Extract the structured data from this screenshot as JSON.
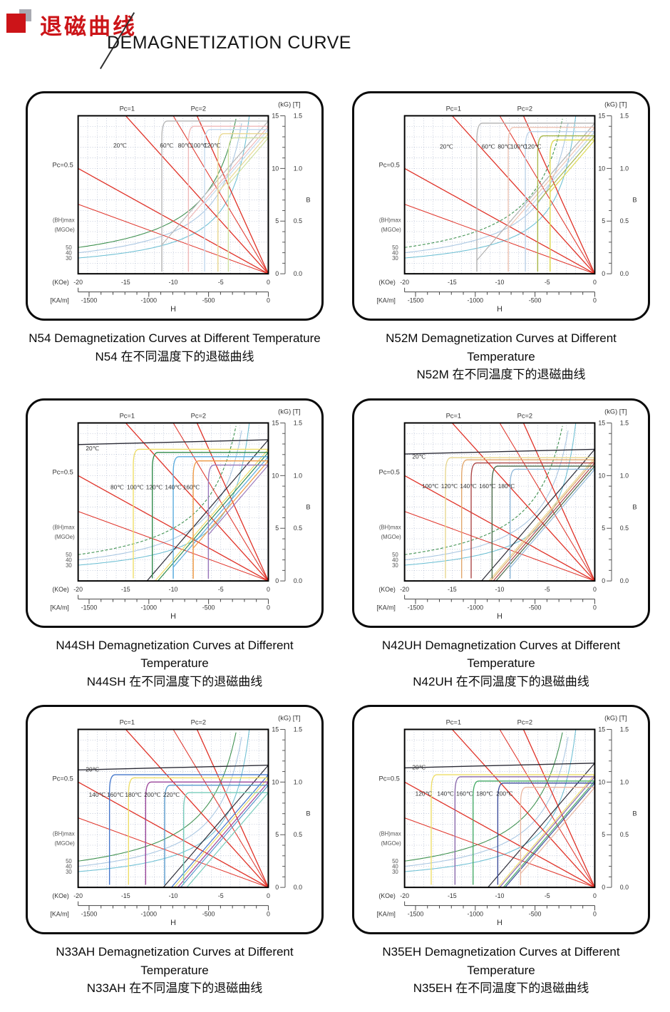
{
  "page": {
    "title_zh": "退磁曲线",
    "title_en": "DEMAGNETIZATION CURVE",
    "accent_color": "#cc1418"
  },
  "axes": {
    "right_axis_title": "(kG) [T]",
    "kg_tick_labels": [
      15,
      10,
      5,
      0
    ],
    "t_tick_labels": [
      "1.5",
      "1.0",
      "0.5",
      "0.0"
    ],
    "b_axis_label": "B",
    "h_axis_label": "H",
    "koe_unit_label": "(KOe)",
    "kam_unit_label": "[KA/m]",
    "koe_ticks": [
      -20,
      -15,
      -10,
      -5,
      0
    ],
    "kam_ticks": [
      -1500,
      -1000,
      -500,
      0
    ],
    "h_range_koe": [
      -20,
      0
    ],
    "b_range_kg": [
      0,
      15
    ],
    "grid": "dotted, 1 kOe x 1 kG",
    "bhmax_title": "(BH)max",
    "bhmax_units": "(MGOe)",
    "bhmax_values": [
      50,
      40,
      30
    ],
    "bhmax_curve_colors": {
      "50": "#3f9150",
      "40": "#aac7e2",
      "30": "#6fc0d4"
    },
    "pc05_label": "Pc=0.5",
    "pc1_label": "Pc=1",
    "pc2_label": "Pc=2",
    "pc_lines_labeled": [
      0.5,
      1,
      2
    ],
    "pc_lines_unlabeled": [
      0.33,
      1.5
    ],
    "load_line_color": "#e0342a"
  },
  "chart_data": [
    {
      "type": "line",
      "grade": "N54",
      "caption_en": "N54 Demagnetization Curves at Different Temperature",
      "caption_zh": "N54 在不同温度下的退磁曲线",
      "bhmax_50_dashed": false,
      "series": [
        {
          "temp": "20℃",
          "color": "#b6b6b6",
          "br_kg": 14.5,
          "knee_koe": -11.2,
          "label_x_koe": -15.6,
          "label_b_kg": 12.0
        },
        {
          "temp": "60℃",
          "color": "#f0b9b9",
          "br_kg": 14.0,
          "knee_koe": -8.4,
          "label_x_koe": -10.7,
          "label_b_kg": 12.0
        },
        {
          "temp": "80℃",
          "color": "#c4d9ee",
          "br_kg": 13.7,
          "knee_koe": -6.7,
          "label_x_koe": -8.8,
          "label_b_kg": 12.0
        },
        {
          "temp": "100℃",
          "color": "#e9d892",
          "br_kg": 13.3,
          "knee_koe": -5.3,
          "label_x_koe": -7.3,
          "label_b_kg": 12.0
        },
        {
          "temp": "120℃",
          "color": "#cfe0a0",
          "br_kg": 12.9,
          "knee_koe": -4.2,
          "label_x_koe": -5.9,
          "label_b_kg": 12.0
        }
      ]
    },
    {
      "type": "line",
      "grade": "N52M",
      "caption_en": "N52M Demagnetization Curves at Different Temperature",
      "caption_zh": "N52M 在不同温度下的退磁曲线",
      "bhmax_50_dashed": true,
      "series": [
        {
          "temp": "20℃",
          "color": "#b2b2b2",
          "br_kg": 14.3,
          "knee_koe": -12.4,
          "label_x_koe": -15.6,
          "label_b_kg": 11.9
        },
        {
          "temp": "60℃",
          "color": "#eec4b4",
          "br_kg": 13.9,
          "knee_koe": -9.1,
          "label_x_koe": -11.2,
          "label_b_kg": 11.9
        },
        {
          "temp": "80℃",
          "color": "#bcd2e8",
          "br_kg": 13.5,
          "knee_koe": -7.3,
          "label_x_koe": -9.5,
          "label_b_kg": 11.9
        },
        {
          "temp": "100℃",
          "color": "#a9b84a",
          "br_kg": 13.1,
          "knee_koe": -6.0,
          "label_x_koe": -8.0,
          "label_b_kg": 11.9
        },
        {
          "temp": "120℃",
          "color": "#dcd84e",
          "br_kg": 12.7,
          "knee_koe": -4.7,
          "label_x_koe": -6.5,
          "label_b_kg": 11.9
        }
      ]
    },
    {
      "type": "line",
      "grade": "N44SH",
      "caption_en": "N44SH Demagnetization Curves at Different Temperature",
      "caption_zh": "N44SH 在不同温度下的退磁曲线",
      "bhmax_50_dashed": true,
      "series": [
        {
          "temp": "20℃",
          "color": "#2a2a35",
          "br_kg": 13.4,
          "knee_koe": null,
          "label_x_koe": -18.5,
          "label_b_kg": 12.4
        },
        {
          "temp": "80℃",
          "color": "#eedd66",
          "br_kg": 12.5,
          "knee_koe": -14.2,
          "label_x_koe": -15.9,
          "label_b_kg": 8.7
        },
        {
          "temp": "100℃",
          "color": "#2f8a4a",
          "br_kg": 12.2,
          "knee_koe": -12.2,
          "label_x_koe": -14.0,
          "label_b_kg": 8.7
        },
        {
          "temp": "120℃",
          "color": "#58aadd",
          "br_kg": 11.8,
          "knee_koe": -10.0,
          "label_x_koe": -12.0,
          "label_b_kg": 8.7
        },
        {
          "temp": "140℃",
          "color": "#ee9944",
          "br_kg": 11.4,
          "knee_koe": -7.9,
          "label_x_koe": -10.0,
          "label_b_kg": 8.7
        },
        {
          "temp": "160℃",
          "color": "#9977bb",
          "br_kg": 11.0,
          "knee_koe": -6.3,
          "label_x_koe": -8.1,
          "label_b_kg": 8.7
        }
      ]
    },
    {
      "type": "line",
      "grade": "N42UH",
      "caption_en": "N42UH Demagnetization Curves at Different Temperature",
      "caption_zh": "N42UH 在不同温度下的退磁曲线",
      "bhmax_50_dashed": true,
      "series": [
        {
          "temp": "20℃",
          "color": "#2a2a35",
          "br_kg": 12.5,
          "knee_koe": null,
          "label_x_koe": -18.5,
          "label_b_kg": 11.6
        },
        {
          "temp": "100℃",
          "color": "#e6d68e",
          "br_kg": 11.7,
          "knee_koe": -15.7,
          "label_x_koe": -17.3,
          "label_b_kg": 8.8
        },
        {
          "temp": "120℃",
          "color": "#e2a66a",
          "br_kg": 11.5,
          "knee_koe": -14.0,
          "label_x_koe": -15.3,
          "label_b_kg": 8.8
        },
        {
          "temp": "140℃",
          "color": "#aa4444",
          "br_kg": 11.2,
          "knee_koe": -13.0,
          "label_x_koe": -13.3,
          "label_b_kg": 8.8
        },
        {
          "temp": "160℃",
          "color": "#4a6a4a",
          "br_kg": 10.9,
          "knee_koe": -10.8,
          "label_x_koe": -11.3,
          "label_b_kg": 8.8
        },
        {
          "temp": "180℃",
          "color": "#92b9d9",
          "br_kg": 10.6,
          "knee_koe": -8.9,
          "label_x_koe": -9.3,
          "label_b_kg": 8.8
        }
      ]
    },
    {
      "type": "line",
      "grade": "N33AH",
      "caption_en": "N33AH Demagnetization Curves at Different Temperature",
      "caption_zh": "N33AH 在不同温度下的退磁曲线",
      "bhmax_50_dashed": false,
      "series": [
        {
          "temp": "20℃",
          "color": "#2a2a35",
          "br_kg": 11.6,
          "knee_koe": null,
          "label_x_koe": -18.5,
          "label_b_kg": 11.0
        },
        {
          "temp": "140℃",
          "color": "#4477cc",
          "br_kg": 10.7,
          "knee_koe": -16.7,
          "label_x_koe": -18.0,
          "label_b_kg": 8.6
        },
        {
          "temp": "160℃",
          "color": "#eedd66",
          "br_kg": 10.4,
          "knee_koe": -14.7,
          "label_x_koe": -16.1,
          "label_b_kg": 8.6
        },
        {
          "temp": "180℃",
          "color": "#994499",
          "br_kg": 10.0,
          "knee_koe": -12.9,
          "label_x_koe": -14.2,
          "label_b_kg": 8.6
        },
        {
          "temp": "200℃",
          "color": "#5599cc",
          "br_kg": 9.7,
          "knee_koe": -10.9,
          "label_x_koe": -12.2,
          "label_b_kg": 8.6
        },
        {
          "temp": "220℃",
          "color": "#77ccbb",
          "br_kg": 9.0,
          "knee_koe": -8.9,
          "label_x_koe": -10.2,
          "label_b_kg": 8.6
        }
      ]
    },
    {
      "type": "line",
      "grade": "N35EH",
      "caption_en": "N35EH Demagnetization Curves at Different Temperature",
      "caption_zh": "N35EH 在不同温度下的退磁曲线",
      "bhmax_50_dashed": false,
      "series": [
        {
          "temp": "20℃",
          "color": "#2a2a35",
          "br_kg": 11.8,
          "knee_koe": null,
          "label_x_koe": -18.5,
          "label_b_kg": 11.2
        },
        {
          "temp": "120℃",
          "color": "#eedd66",
          "br_kg": 10.7,
          "knee_koe": -17.2,
          "label_x_koe": -18.0,
          "label_b_kg": 8.7
        },
        {
          "temp": "140℃",
          "color": "#8866aa",
          "br_kg": 10.5,
          "knee_koe": -14.7,
          "label_x_koe": -15.7,
          "label_b_kg": 8.7
        },
        {
          "temp": "160℃",
          "color": "#44aa66",
          "br_kg": 10.1,
          "knee_koe": -12.8,
          "label_x_koe": -13.7,
          "label_b_kg": 8.7
        },
        {
          "temp": "180℃",
          "color": "#3a4a99",
          "br_kg": 9.9,
          "knee_koe": -10.2,
          "label_x_koe": -11.6,
          "label_b_kg": 8.7
        },
        {
          "temp": "200℃",
          "color": "#eab6a0",
          "br_kg": 9.5,
          "knee_koe": -7.8,
          "label_x_koe": -9.5,
          "label_b_kg": 8.7
        }
      ]
    }
  ]
}
